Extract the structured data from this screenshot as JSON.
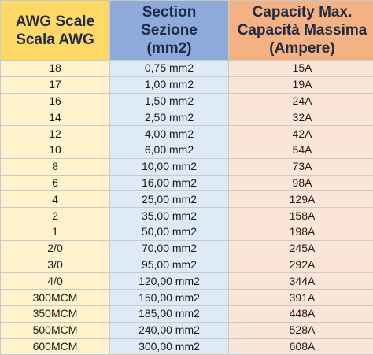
{
  "table": {
    "header": [
      [
        "AWG Scale",
        "Scala AWG"
      ],
      [
        "Section",
        "Sezione",
        "(mm2)"
      ],
      [
        "Capacity Max.",
        "Capacità Massima",
        "(Ampere)"
      ]
    ],
    "rows": [
      [
        "18",
        "0,75 mm2",
        "15A"
      ],
      [
        "17",
        "1,00 mm2",
        "19A"
      ],
      [
        "16",
        "1,50 mm2",
        "24A"
      ],
      [
        "14",
        "2,50 mm2",
        "32A"
      ],
      [
        "12",
        "4,00 mm2",
        "42A"
      ],
      [
        "10",
        "6,00 mm2",
        "54A"
      ],
      [
        "8",
        "10,00 mm2",
        "73A"
      ],
      [
        "6",
        "16,00 mm2",
        "98A"
      ],
      [
        "4",
        "25,00 mm2",
        "129A"
      ],
      [
        "2",
        "35,00 mm2",
        "158A"
      ],
      [
        "1",
        "50,00 mm2",
        "198A"
      ],
      [
        "2/0",
        "70,00 mm2",
        "245A"
      ],
      [
        "3/0",
        "95,00 mm2",
        "292A"
      ],
      [
        "4/0",
        "120,00 mm2",
        "344A"
      ],
      [
        "300MCM",
        "150,00 mm2",
        "391A"
      ],
      [
        "350MCM",
        "185,00 mm2",
        "448A"
      ],
      [
        "500MCM",
        "240,00 mm2",
        "528A"
      ],
      [
        "600MCM",
        "300,00 mm2",
        "608A"
      ]
    ]
  }
}
